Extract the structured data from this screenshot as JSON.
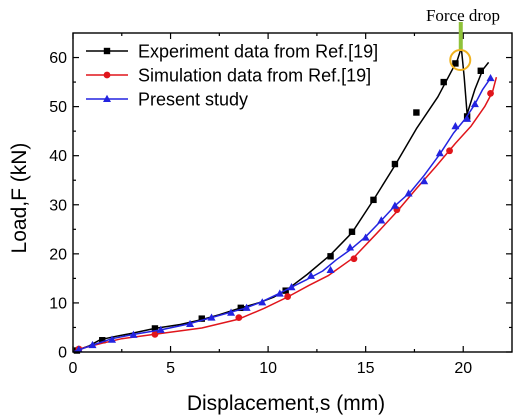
{
  "chart_data": {
    "type": "line",
    "xlabel": "Displacement,s (mm)",
    "ylabel": "Load,F (kN)",
    "xlim": [
      0,
      22.5
    ],
    "ylim": [
      0,
      65
    ],
    "xticks": [
      0,
      5,
      10,
      15,
      20
    ],
    "yticks": [
      0,
      10,
      20,
      30,
      40,
      50,
      60
    ],
    "legend_position": "top-left",
    "annotation": {
      "text": "Force drop",
      "x": 19.9,
      "y": 59.5
    },
    "series": [
      {
        "name": "Experiment data from Ref.[19]",
        "color": "#000000",
        "marker": "square",
        "line": [
          [
            0,
            0
          ],
          [
            0.3,
            0.5
          ],
          [
            0.8,
            1.2
          ],
          [
            1.4,
            2.5
          ],
          [
            2.2,
            3.2
          ],
          [
            3.0,
            3.8
          ],
          [
            4.2,
            4.8
          ],
          [
            5.5,
            5.6
          ],
          [
            6.6,
            6.6
          ],
          [
            7.5,
            7.6
          ],
          [
            8.6,
            9.0
          ],
          [
            9.5,
            10.0
          ],
          [
            10.3,
            11.2
          ],
          [
            11.0,
            12.8
          ],
          [
            12.0,
            15.8
          ],
          [
            13.2,
            19.8
          ],
          [
            14.3,
            24.3
          ],
          [
            15.4,
            31.0
          ],
          [
            16.5,
            38.0
          ],
          [
            17.6,
            45.5
          ],
          [
            18.7,
            52.0
          ],
          [
            19.3,
            56.5
          ],
          [
            19.7,
            59.5
          ],
          [
            19.9,
            62.0
          ],
          [
            20.05,
            56.0
          ],
          [
            20.2,
            48.5
          ],
          [
            20.6,
            53.5
          ],
          [
            21.0,
            57.5
          ],
          [
            21.3,
            59.0
          ]
        ],
        "markers": [
          [
            0.2,
            0.3
          ],
          [
            1.5,
            2.4
          ],
          [
            4.2,
            4.8
          ],
          [
            6.6,
            6.8
          ],
          [
            8.6,
            9.0
          ],
          [
            10.9,
            12.5
          ],
          [
            13.2,
            19.5
          ],
          [
            14.3,
            24.5
          ],
          [
            15.4,
            31.0
          ],
          [
            16.5,
            38.3
          ],
          [
            17.6,
            48.8
          ],
          [
            19.0,
            55.0
          ],
          [
            19.6,
            58.8
          ],
          [
            20.2,
            48.0
          ],
          [
            20.9,
            57.3
          ]
        ]
      },
      {
        "name": "Simulation data from Ref.[19]",
        "color": "#e0151b",
        "marker": "circle",
        "line": [
          [
            0,
            0
          ],
          [
            0.5,
            0.8
          ],
          [
            1.5,
            1.8
          ],
          [
            2.5,
            2.7
          ],
          [
            4.2,
            3.6
          ],
          [
            6.6,
            4.9
          ],
          [
            8.5,
            6.7
          ],
          [
            9.8,
            8.9
          ],
          [
            11.0,
            11.2
          ],
          [
            12.1,
            13.6
          ],
          [
            13.1,
            15.6
          ],
          [
            14.4,
            19.3
          ],
          [
            15.6,
            24.3
          ],
          [
            16.6,
            28.6
          ],
          [
            17.6,
            33.3
          ],
          [
            18.6,
            37.8
          ],
          [
            19.6,
            42.5
          ],
          [
            20.4,
            46.0
          ],
          [
            21.1,
            50.0
          ],
          [
            21.5,
            53.0
          ],
          [
            21.7,
            56.0
          ]
        ],
        "markers": [
          [
            0.3,
            0.6
          ],
          [
            4.2,
            3.6
          ],
          [
            8.5,
            7.0
          ],
          [
            11.0,
            11.3
          ],
          [
            14.4,
            19.0
          ],
          [
            16.6,
            29.0
          ],
          [
            19.3,
            41.0
          ],
          [
            21.4,
            52.7
          ]
        ]
      },
      {
        "name": "Present study",
        "color": "#2323e0",
        "marker": "triangle",
        "line": [
          [
            0,
            0
          ],
          [
            0.5,
            0.7
          ],
          [
            1.0,
            1.4
          ],
          [
            2.0,
            2.7
          ],
          [
            3.0,
            3.5
          ],
          [
            4.5,
            4.5
          ],
          [
            5.8,
            5.6
          ],
          [
            7.0,
            6.9
          ],
          [
            8.0,
            8.0
          ],
          [
            8.8,
            8.9
          ],
          [
            9.6,
            10.1
          ],
          [
            10.5,
            11.8
          ],
          [
            11.2,
            13.2
          ],
          [
            12.0,
            14.8
          ],
          [
            12.8,
            16.5
          ],
          [
            13.5,
            18.8
          ],
          [
            14.2,
            20.8
          ],
          [
            15.0,
            23.5
          ],
          [
            15.8,
            26.8
          ],
          [
            16.5,
            29.8
          ],
          [
            17.3,
            32.6
          ],
          [
            18.0,
            36.0
          ],
          [
            18.8,
            40.3
          ],
          [
            19.5,
            44.6
          ],
          [
            20.1,
            47.5
          ],
          [
            20.6,
            50.5
          ],
          [
            21.0,
            53.5
          ],
          [
            21.4,
            55.8
          ]
        ],
        "markers": [
          [
            0.3,
            0.5
          ],
          [
            1.0,
            1.4
          ],
          [
            2.0,
            2.5
          ],
          [
            3.1,
            3.5
          ],
          [
            4.5,
            4.5
          ],
          [
            6.0,
            5.7
          ],
          [
            7.1,
            7.0
          ],
          [
            8.1,
            8.0
          ],
          [
            8.9,
            9.0
          ],
          [
            9.7,
            10.1
          ],
          [
            10.6,
            11.9
          ],
          [
            11.2,
            13.2
          ],
          [
            12.2,
            15.5
          ],
          [
            13.2,
            16.7
          ],
          [
            14.2,
            21.3
          ],
          [
            15.0,
            23.3
          ],
          [
            15.8,
            26.8
          ],
          [
            16.5,
            29.8
          ],
          [
            17.2,
            32.3
          ],
          [
            18.0,
            34.8
          ],
          [
            18.8,
            40.5
          ],
          [
            19.6,
            46.0
          ],
          [
            20.2,
            47.5
          ],
          [
            20.6,
            50.5
          ],
          [
            21.4,
            55.8
          ]
        ]
      }
    ]
  }
}
